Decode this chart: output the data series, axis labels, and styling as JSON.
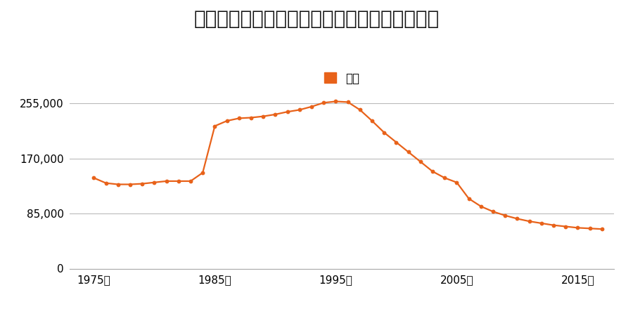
{
  "title": "山形県米沢市門東町３丁目９７１番の地価推移",
  "legend_label": "価格",
  "line_color": "#e8621a",
  "marker_color": "#e8621a",
  "background_color": "#ffffff",
  "yticks": [
    0,
    85000,
    170000,
    255000
  ],
  "ytick_labels": [
    "0",
    "85,000",
    "170,000",
    "255,000"
  ],
  "xticks": [
    1975,
    1985,
    1995,
    2005,
    2015
  ],
  "xtick_labels": [
    "1975年",
    "1985年",
    "1995年",
    "2005年",
    "2015年"
  ],
  "xlim": [
    1973,
    2018
  ],
  "ylim": [
    0,
    278000
  ],
  "years": [
    1975,
    1976,
    1977,
    1978,
    1979,
    1980,
    1981,
    1982,
    1983,
    1984,
    1985,
    1986,
    1987,
    1988,
    1989,
    1990,
    1991,
    1992,
    1993,
    1994,
    1995,
    1996,
    1997,
    1998,
    1999,
    2000,
    2001,
    2002,
    2003,
    2004,
    2005,
    2006,
    2007,
    2008,
    2009,
    2010,
    2011,
    2012,
    2013,
    2014,
    2015,
    2016,
    2017
  ],
  "values": [
    140000,
    132000,
    130000,
    130000,
    131000,
    133000,
    135000,
    135000,
    135000,
    148000,
    220000,
    228000,
    232000,
    233000,
    235000,
    238000,
    242000,
    245000,
    250000,
    256000,
    258000,
    257000,
    245000,
    228000,
    210000,
    195000,
    180000,
    165000,
    150000,
    140000,
    133000,
    108000,
    96000,
    88000,
    82000,
    77000,
    73000,
    70000,
    67000,
    65000,
    63000,
    62000,
    61000
  ]
}
